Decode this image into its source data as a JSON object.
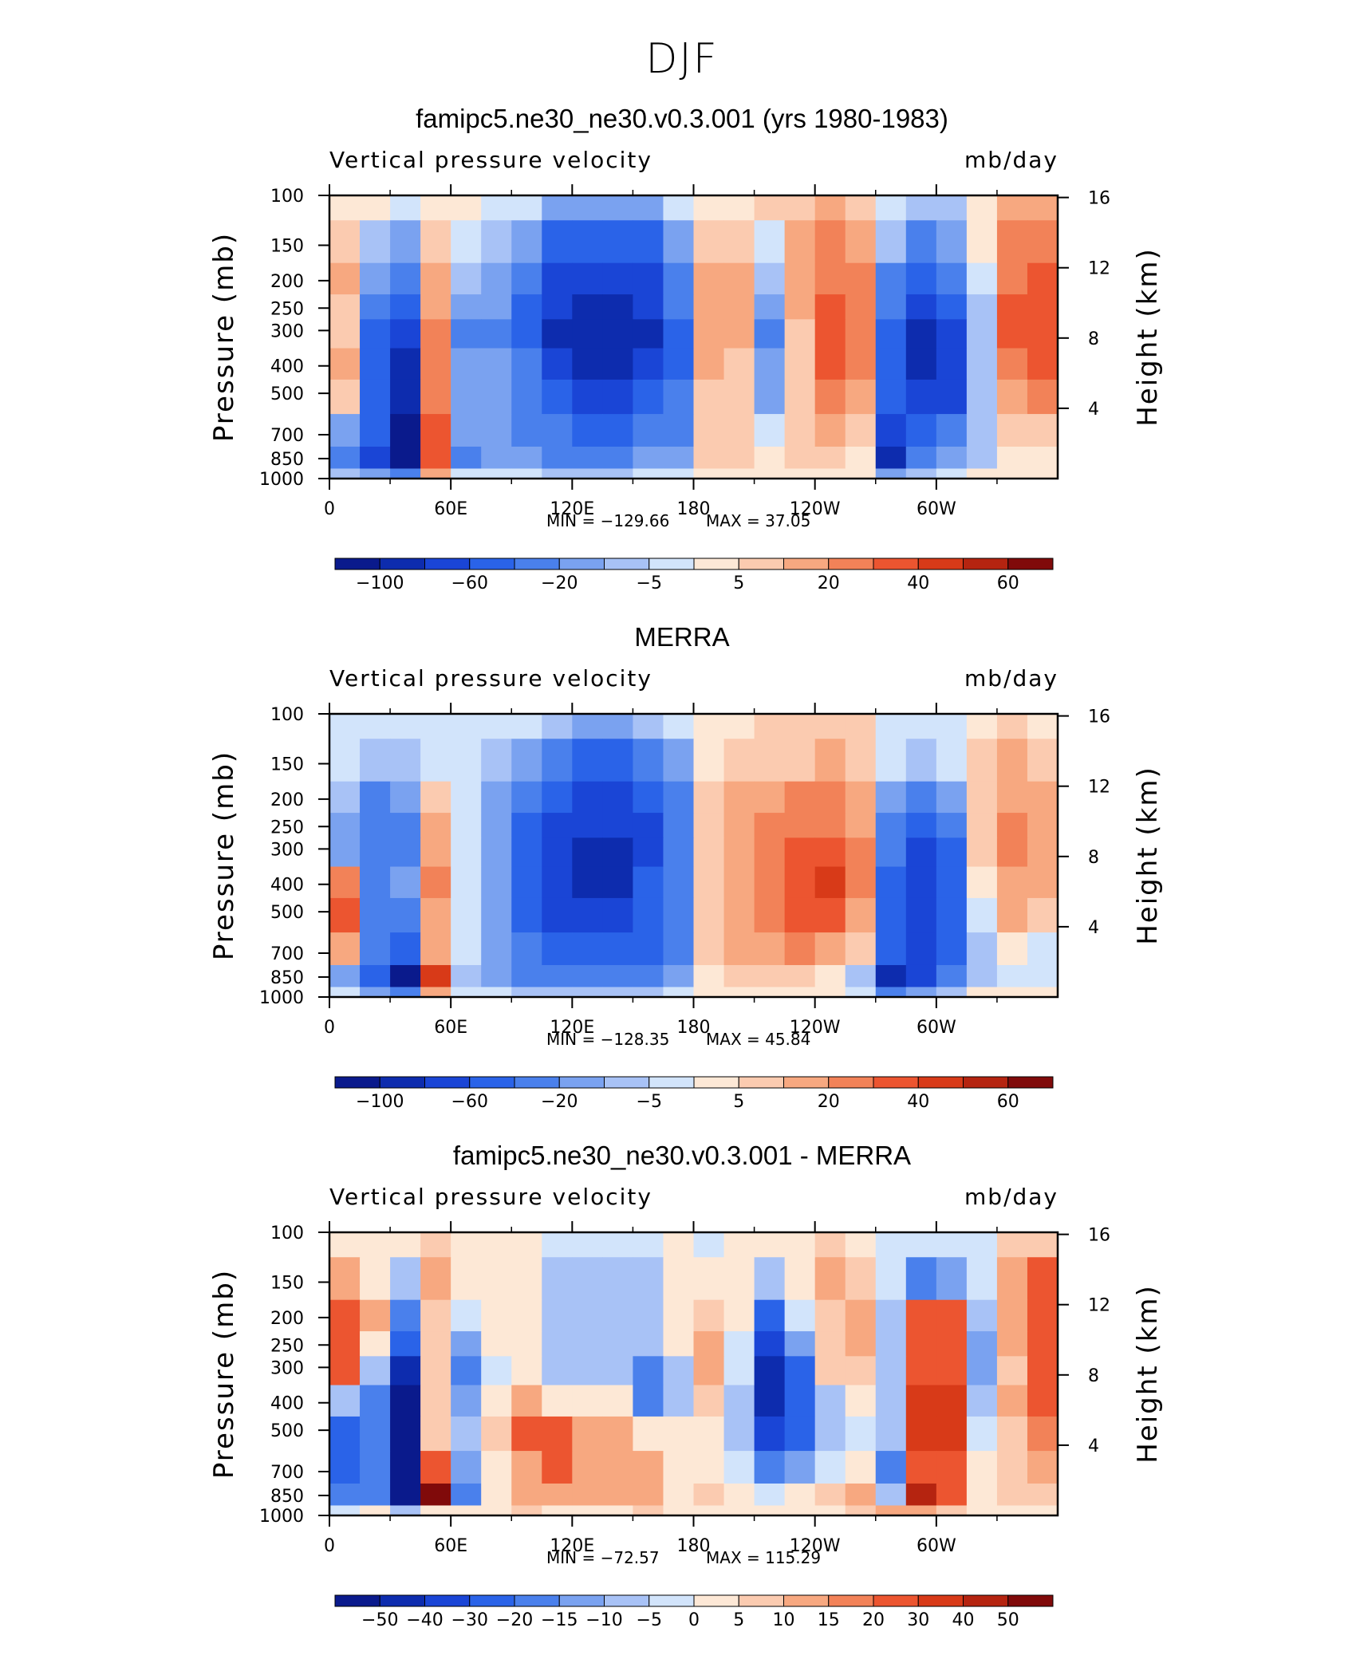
{
  "figure": {
    "title": "DJF"
  },
  "panels": [
    {
      "id": "model",
      "title": "famipc5.ne30_ne30.v0.3.001 (yrs 1980-1983)",
      "variable": "Vertical pressure velocity",
      "units": "mb/day",
      "min_text": "MIN  =  −129.66",
      "max_text": "MAX  =   37.05",
      "colorbar_labels": [
        "−100",
        "−60",
        "−20",
        "−5",
        "5",
        "20",
        "40",
        "60"
      ],
      "colorbar_label_positions": [
        1,
        3,
        5,
        7,
        9,
        11,
        13,
        15
      ]
    },
    {
      "id": "obs",
      "title": "MERRA",
      "variable": "Vertical pressure velocity",
      "units": "mb/day",
      "min_text": "MIN  =  −128.35",
      "max_text": "MAX  =   45.84",
      "colorbar_labels": [
        "−100",
        "−60",
        "−20",
        "−5",
        "5",
        "20",
        "40",
        "60"
      ],
      "colorbar_label_positions": [
        1,
        3,
        5,
        7,
        9,
        11,
        13,
        15
      ]
    },
    {
      "id": "diff",
      "title": "famipc5.ne30_ne30.v0.3.001 - MERRA",
      "variable": "Vertical pressure velocity",
      "units": "mb/day",
      "min_text": "MIN  =  −72.57",
      "max_text": "MAX  =  115.29",
      "colorbar_labels": [
        "−50",
        "−40",
        "−30",
        "−20",
        "−15",
        "−10",
        "−5",
        "0",
        "5",
        "10",
        "15",
        "20",
        "30",
        "40",
        "50"
      ],
      "colorbar_label_positions": [
        1,
        2,
        3,
        4,
        5,
        6,
        7,
        8,
        9,
        10,
        11,
        12,
        13,
        14,
        15
      ]
    }
  ],
  "axes": {
    "ylabel_left": "Pressure (mb)",
    "ylabel_right": "Height (km)",
    "pressure_ticks": [
      "100",
      "150",
      "200",
      "250",
      "300",
      "400",
      "500",
      "700",
      "850",
      "1000"
    ],
    "pressure_values": [
      100,
      150,
      200,
      250,
      300,
      400,
      500,
      700,
      850,
      1000
    ],
    "height_ticks": [
      "16",
      "12",
      "8",
      "4"
    ],
    "height_values": [
      16,
      12,
      8,
      4
    ],
    "lon_ticks": [
      "0",
      "60E",
      "120E",
      "180",
      "120W",
      "60W"
    ],
    "lon_values": [
      0,
      60,
      120,
      180,
      240,
      300
    ],
    "xlim": [
      0,
      360
    ],
    "ylim_mb": [
      1000,
      100
    ]
  },
  "colors": {
    "abs_scale": [
      "#0a1a8c",
      "#0d2cae",
      "#1a45d6",
      "#2a63e8",
      "#4a80ec",
      "#7aa2f0",
      "#a8c2f6",
      "#d2e4fb",
      "#fde8d6",
      "#fbcbb0",
      "#f7a880",
      "#f28258",
      "#ec5530",
      "#d83a18",
      "#b52410",
      "#800a0a"
    ],
    "diff_scale": [
      "#0a1a8c",
      "#0d2cae",
      "#1a45d6",
      "#2a63e8",
      "#4a80ec",
      "#7aa2f0",
      "#a8c2f6",
      "#d2e4fb",
      "#fde8d6",
      "#fbcbb0",
      "#f7a880",
      "#f28258",
      "#ec5530",
      "#d83a18",
      "#b52410",
      "#800a0a"
    ]
  },
  "chart_data": [
    {
      "type": "heatmap",
      "title": "famipc5.ne30_ne30.v0.3.001 (yrs 1980-1983)",
      "subtitle": "Vertical pressure velocity",
      "units": "mb/day",
      "xlabel": "",
      "ylabel": "Pressure (mb)",
      "y2label": "Height (km)",
      "x": [
        0,
        15,
        30,
        45,
        60,
        75,
        90,
        105,
        120,
        135,
        150,
        165,
        180,
        195,
        210,
        225,
        240,
        255,
        270,
        285,
        300,
        315,
        330,
        345
      ],
      "y": [
        100,
        150,
        200,
        250,
        300,
        400,
        500,
        700,
        850,
        1000
      ],
      "values": [
        [
          2,
          1,
          -2,
          3,
          1,
          -2,
          -5,
          -15,
          -20,
          -20,
          -15,
          -5,
          2,
          3,
          5,
          8,
          10,
          5,
          -5,
          -10,
          -8,
          0,
          10,
          12
        ],
        [
          5,
          -10,
          -20,
          5,
          -5,
          -10,
          -20,
          -50,
          -60,
          -60,
          -50,
          -20,
          5,
          8,
          -5,
          10,
          20,
          10,
          -10,
          -30,
          -20,
          0,
          20,
          25
        ],
        [
          10,
          -20,
          -40,
          10,
          -10,
          -15,
          -40,
          -70,
          -80,
          -80,
          -70,
          -30,
          10,
          10,
          -10,
          15,
          25,
          20,
          -30,
          -60,
          -40,
          -5,
          25,
          30
        ],
        [
          8,
          -40,
          -60,
          15,
          -20,
          -20,
          -50,
          -80,
          -90,
          -90,
          -80,
          -40,
          15,
          10,
          -20,
          10,
          30,
          25,
          -40,
          -80,
          -60,
          -10,
          30,
          35
        ],
        [
          5,
          -50,
          -80,
          20,
          -25,
          -25,
          -50,
          -90,
          -100,
          -100,
          -90,
          -50,
          15,
          10,
          -25,
          8,
          35,
          25,
          -50,
          -90,
          -70,
          -10,
          30,
          35
        ],
        [
          10,
          -50,
          -100,
          25,
          -20,
          -20,
          -40,
          -80,
          -90,
          -90,
          -80,
          -50,
          10,
          8,
          -20,
          5,
          30,
          20,
          -60,
          -90,
          -80,
          -10,
          25,
          30
        ],
        [
          5,
          -50,
          -100,
          20,
          -15,
          -15,
          -30,
          -60,
          -70,
          -70,
          -60,
          -40,
          5,
          5,
          -15,
          5,
          20,
          10,
          -60,
          -80,
          -70,
          -10,
          15,
          20
        ],
        [
          -20,
          -60,
          -120,
          30,
          -20,
          -20,
          -30,
          -40,
          -50,
          -50,
          -40,
          -30,
          5,
          5,
          -5,
          5,
          10,
          5,
          -80,
          -60,
          -40,
          -10,
          5,
          5
        ],
        [
          -40,
          -80,
          -129.66,
          37.05,
          -30,
          -20,
          -20,
          -30,
          -30,
          -30,
          -20,
          -20,
          5,
          5,
          0,
          5,
          5,
          0,
          -100,
          -40,
          -20,
          -10,
          0,
          0
        ],
        [
          -10,
          -20,
          -30,
          10,
          -5,
          -5,
          -5,
          -10,
          -10,
          -10,
          -5,
          -5,
          0,
          0,
          0,
          0,
          0,
          0,
          -20,
          -10,
          -5,
          0,
          0,
          0
        ]
      ],
      "min": -129.66,
      "max": 37.05,
      "colorbar_levels": [
        -100,
        -60,
        -20,
        -5,
        5,
        20,
        40,
        60
      ],
      "xlim": [
        0,
        360
      ],
      "ylim": [
        1000,
        100
      ],
      "grid": false
    },
    {
      "type": "heatmap",
      "title": "MERRA",
      "subtitle": "Vertical pressure velocity",
      "units": "mb/day",
      "xlabel": "",
      "ylabel": "Pressure (mb)",
      "y2label": "Height (km)",
      "x": [
        0,
        15,
        30,
        45,
        60,
        75,
        90,
        105,
        120,
        135,
        150,
        165,
        180,
        195,
        210,
        225,
        240,
        255,
        270,
        285,
        300,
        315,
        330,
        345
      ],
      "y": [
        100,
        150,
        200,
        250,
        300,
        400,
        500,
        700,
        850,
        1000
      ],
      "values": [
        [
          -2,
          -2,
          -2,
          -2,
          -2,
          -5,
          -5,
          -10,
          -15,
          -15,
          -10,
          -5,
          3,
          3,
          5,
          5,
          5,
          5,
          -3,
          -5,
          -3,
          3,
          5,
          3
        ],
        [
          -5,
          -10,
          -10,
          -5,
          -5,
          -10,
          -20,
          -40,
          -50,
          -50,
          -40,
          -20,
          3,
          5,
          5,
          8,
          10,
          5,
          -5,
          -10,
          -5,
          5,
          10,
          5
        ],
        [
          -10,
          -30,
          -20,
          5,
          -5,
          -15,
          -40,
          -60,
          -70,
          -70,
          -60,
          -30,
          5,
          10,
          15,
          20,
          20,
          10,
          -20,
          -40,
          -20,
          5,
          15,
          10
        ],
        [
          -20,
          -40,
          -30,
          10,
          -5,
          -20,
          -50,
          -70,
          -80,
          -80,
          -70,
          -40,
          5,
          15,
          20,
          25,
          25,
          15,
          -30,
          -60,
          -40,
          5,
          20,
          15
        ],
        [
          -20,
          -40,
          -30,
          15,
          -5,
          -20,
          -50,
          -80,
          -90,
          -90,
          -70,
          -40,
          5,
          15,
          25,
          30,
          30,
          20,
          -40,
          -70,
          -50,
          5,
          25,
          15
        ],
        [
          20,
          -30,
          -20,
          20,
          -5,
          -20,
          -50,
          -80,
          -90,
          -90,
          -60,
          -40,
          5,
          15,
          25,
          30,
          40,
          20,
          -50,
          -80,
          -60,
          0,
          15,
          10
        ],
        [
          30,
          -30,
          -30,
          15,
          -5,
          -20,
          -50,
          -80,
          -80,
          -80,
          -60,
          -40,
          5,
          15,
          25,
          30,
          30,
          15,
          -50,
          -80,
          -60,
          -5,
          10,
          5
        ],
        [
          10,
          -40,
          -60,
          10,
          -5,
          -20,
          -40,
          -60,
          -60,
          -60,
          -50,
          -30,
          5,
          10,
          15,
          20,
          15,
          5,
          -60,
          -80,
          -60,
          -10,
          0,
          -5
        ],
        [
          -20,
          -60,
          -128.35,
          45.84,
          -10,
          -20,
          -30,
          -40,
          -40,
          -40,
          -30,
          -20,
          0,
          5,
          5,
          5,
          0,
          -10,
          -90,
          -80,
          -40,
          -10,
          -5,
          -5
        ],
        [
          -5,
          -20,
          -40,
          10,
          -5,
          -5,
          -10,
          -10,
          -10,
          -10,
          -10,
          -5,
          0,
          0,
          0,
          0,
          0,
          -5,
          -30,
          -20,
          -10,
          0,
          0,
          0
        ]
      ],
      "min": -128.35,
      "max": 45.84,
      "colorbar_levels": [
        -100,
        -60,
        -20,
        -5,
        5,
        20,
        40,
        60
      ],
      "xlim": [
        0,
        360
      ],
      "ylim": [
        1000,
        100
      ],
      "grid": false
    },
    {
      "type": "heatmap",
      "title": "famipc5.ne30_ne30.v0.3.001 - MERRA",
      "subtitle": "Vertical pressure velocity",
      "units": "mb/day",
      "xlabel": "",
      "ylabel": "Pressure (mb)",
      "y2label": "Height (km)",
      "x": [
        0,
        15,
        30,
        45,
        60,
        75,
        90,
        105,
        120,
        135,
        150,
        165,
        180,
        195,
        210,
        225,
        240,
        255,
        270,
        285,
        300,
        315,
        330,
        345
      ],
      "y": [
        100,
        150,
        200,
        250,
        300,
        400,
        500,
        700,
        850,
        1000
      ],
      "values": [
        [
          4,
          3,
          0,
          5,
          3,
          3,
          0,
          -5,
          -5,
          -5,
          -5,
          0,
          -1,
          0,
          0,
          3,
          5,
          0,
          -2,
          -5,
          -5,
          -3,
          5,
          9
        ],
        [
          10,
          0,
          -10,
          10,
          0,
          0,
          0,
          -10,
          -10,
          -10,
          -10,
          0,
          2,
          3,
          -10,
          2,
          10,
          5,
          -5,
          -20,
          -15,
          -5,
          10,
          20
        ],
        [
          20,
          10,
          -20,
          5,
          -5,
          0,
          0,
          -10,
          -10,
          -10,
          -10,
          0,
          5,
          0,
          -25,
          -5,
          5,
          10,
          -10,
          20,
          20,
          -10,
          10,
          20
        ],
        [
          28,
          0,
          -30,
          5,
          -15,
          0,
          0,
          -10,
          -10,
          -10,
          -10,
          0,
          10,
          -5,
          -40,
          -15,
          5,
          10,
          -10,
          20,
          20,
          -15,
          10,
          20
        ],
        [
          25,
          -10,
          -50,
          5,
          -20,
          -5,
          0,
          -10,
          -10,
          -10,
          -20,
          -10,
          10,
          -5,
          -50,
          -22,
          5,
          5,
          -10,
          20,
          20,
          -15,
          5,
          20
        ],
        [
          -10,
          -20,
          -80,
          5,
          -15,
          0,
          10,
          0,
          0,
          0,
          -20,
          -10,
          5,
          -7,
          -45,
          -25,
          -10,
          0,
          -10,
          30,
          30,
          -10,
          10,
          20
        ],
        [
          -25,
          -20,
          -70,
          5,
          -10,
          5,
          20,
          20,
          10,
          10,
          0,
          0,
          0,
          -10,
          -40,
          -25,
          -10,
          -5,
          -10,
          30,
          30,
          -5,
          5,
          15
        ],
        [
          -30,
          -20,
          -60,
          20,
          -15,
          0,
          10,
          20,
          10,
          10,
          10,
          0,
          0,
          -5,
          -20,
          -15,
          -5,
          0,
          -20,
          20,
          20,
          0,
          5,
          10
        ],
        [
          -20,
          -20,
          -72.57,
          115.29,
          -20,
          0,
          10,
          10,
          10,
          10,
          10,
          0,
          5,
          0,
          -5,
          0,
          5,
          10,
          -10,
          40,
          20,
          0,
          5,
          5
        ],
        [
          -5,
          0,
          -10,
          0,
          0,
          0,
          5,
          0,
          0,
          0,
          5,
          0,
          0,
          0,
          0,
          0,
          0,
          5,
          10,
          10,
          5,
          0,
          0,
          0
        ]
      ],
      "min": -72.57,
      "max": 115.29,
      "colorbar_levels": [
        -50,
        -40,
        -30,
        -20,
        -15,
        -10,
        -5,
        0,
        5,
        10,
        15,
        20,
        30,
        40,
        50
      ],
      "xlim": [
        0,
        360
      ],
      "ylim": [
        1000,
        100
      ],
      "grid": false
    }
  ]
}
